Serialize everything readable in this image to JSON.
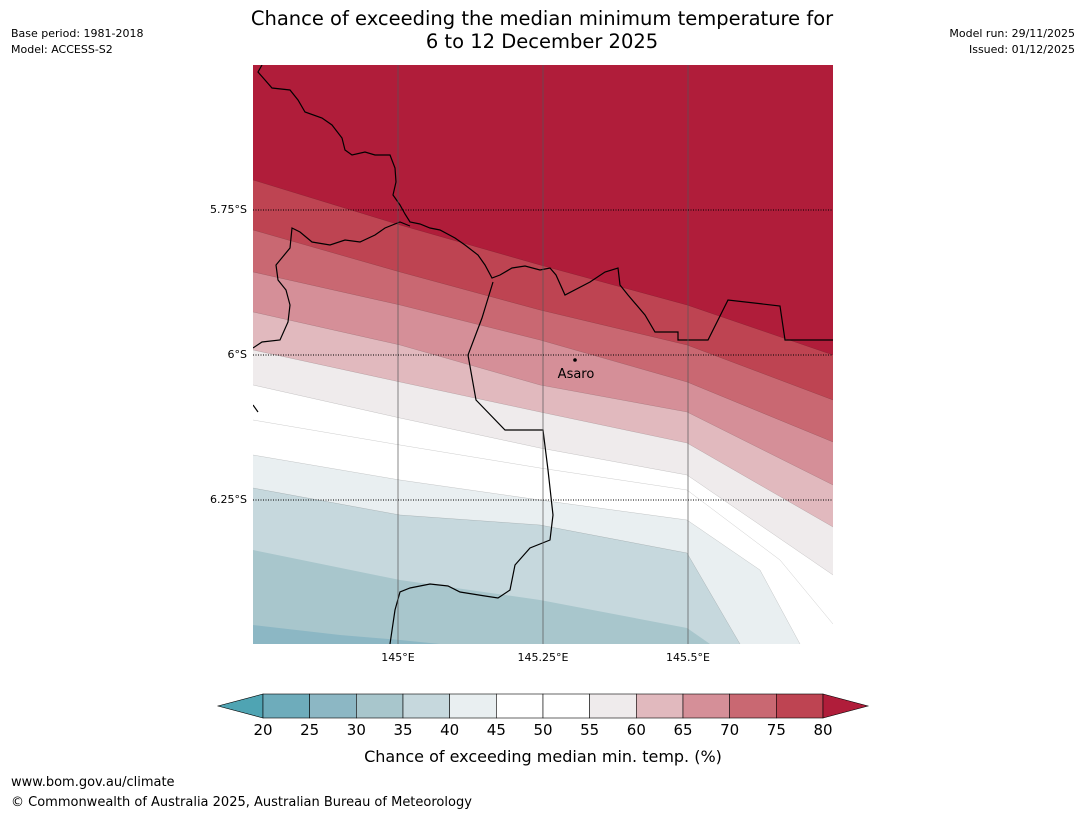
{
  "title": {
    "line1": "Chance of exceeding the median minimum temperature for",
    "line2": "6 to 12 December 2025"
  },
  "meta": {
    "base_period": "Base period: 1981-2018",
    "model": "Model: ACCESS-S2",
    "model_run": "Model run: 29/11/2025",
    "issued": "Issued: 01/12/2025"
  },
  "map": {
    "lat_labels": [
      "5.75°S",
      "6°S",
      "6.25°S"
    ],
    "lon_labels": [
      "145°E",
      "145.25°E",
      "145.5°E"
    ],
    "place": {
      "name": "Asaro"
    }
  },
  "colorbar": {
    "label": "Chance of exceeding median min. temp. (%)",
    "ticks": [
      "20",
      "25",
      "30",
      "35",
      "40",
      "45",
      "50",
      "55",
      "60",
      "65",
      "70",
      "75",
      "80"
    ],
    "colors": {
      "lt20": "#4fa4b3",
      "20-25": "#6eacbb",
      "25-30": "#8cb7c4",
      "30-35": "#a8c6cc",
      "35-40": "#c6d8dd",
      "40-45": "#e9eff1",
      "45-50": "#ffffff",
      "50-55": "#ffffff",
      "55-60": "#efebec",
      "60-65": "#e1b9be",
      "65-70": "#d58f98",
      "70-75": "#c96872",
      "75-80": "#be4452",
      "gt80": "#b01d3a"
    }
  },
  "footer": {
    "url": "www.bom.gov.au/climate",
    "copyright": "© Commonwealth of Australia 2025, Australian Bureau of Meteorology"
  }
}
